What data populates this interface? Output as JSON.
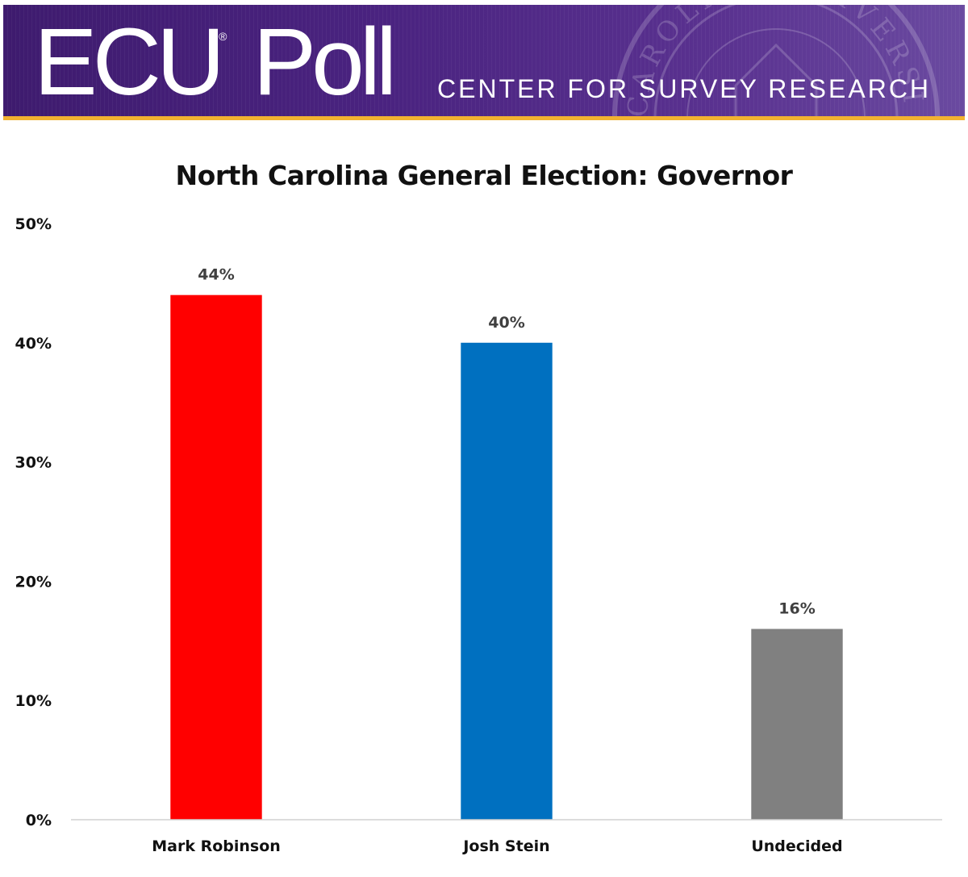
{
  "header": {
    "logo_text": "ECU Poll",
    "logo_reg_mark": "®",
    "tagline": "CENTER FOR SURVEY RESEARCH",
    "seal_text": "CAROLINA UNIVERSITY",
    "colors": {
      "banner_purple": "#4a2380",
      "gold_rule": "#f2b230"
    }
  },
  "chart_data": {
    "type": "bar",
    "title": "North Carolina General Election: Governor",
    "categories": [
      "Mark Robinson",
      "Josh Stein",
      "Undecided"
    ],
    "values": [
      44,
      40,
      16
    ],
    "data_labels": [
      "44%",
      "40%",
      "16%"
    ],
    "colors": [
      "#ff0000",
      "#0070c0",
      "#808080"
    ],
    "y_ticks": [
      0,
      10,
      20,
      30,
      40,
      50
    ],
    "y_tick_labels": [
      "0%",
      "10%",
      "20%",
      "30%",
      "40%",
      "50%"
    ],
    "ylim": [
      0,
      50
    ],
    "xlabel": "",
    "ylabel": "",
    "grid": false,
    "legend": "none"
  }
}
